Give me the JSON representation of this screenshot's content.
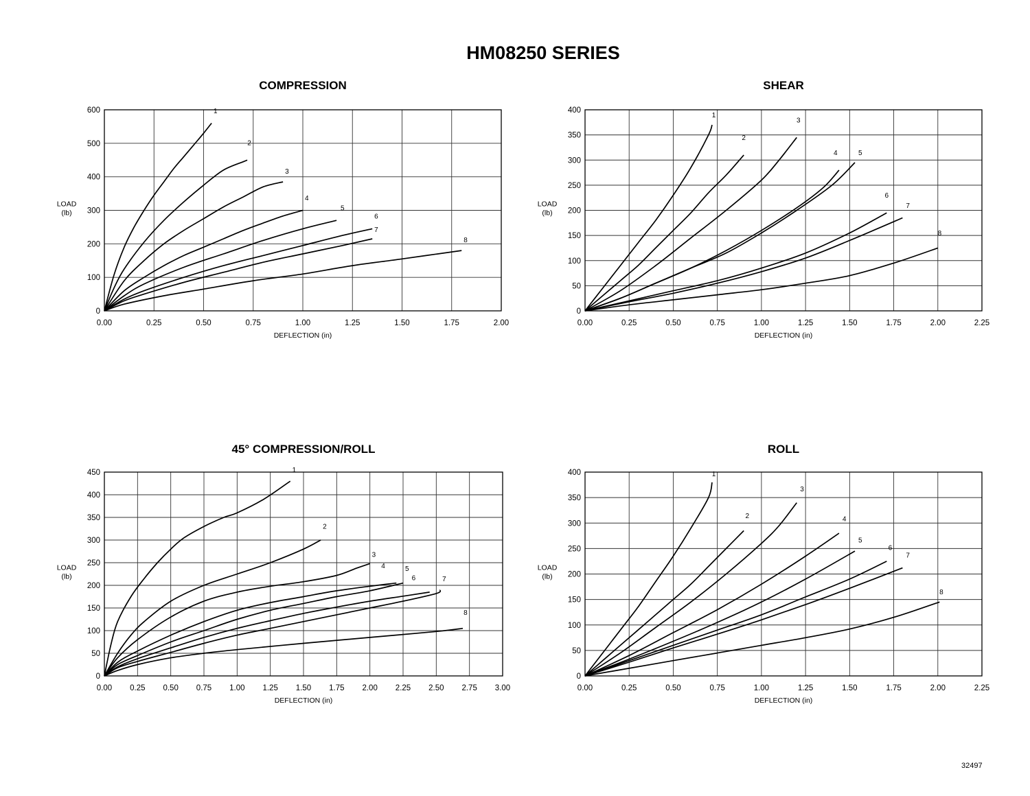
{
  "title": "HM08250 SERIES",
  "doc_number": "32497",
  "chart_data": [
    {
      "type": "line",
      "title": "COMPRESSION",
      "xlabel": "DEFLECTION (in)",
      "ylabel": [
        "LOAD",
        "(lb)"
      ],
      "xlim": [
        0,
        2.0
      ],
      "ylim": [
        0,
        600
      ],
      "xticks": [
        "0.00",
        "0.25",
        "0.50",
        "0.75",
        "1.00",
        "1.25",
        "1.50",
        "1.75",
        "2.00"
      ],
      "yticks": [
        "0",
        "100",
        "200",
        "300",
        "400",
        "500",
        "600"
      ],
      "grid": true,
      "series": [
        {
          "name": "1",
          "x": [
            0,
            0.05,
            0.1,
            0.15,
            0.2,
            0.25,
            0.3,
            0.35,
            0.4,
            0.45,
            0.5,
            0.54
          ],
          "y": [
            0,
            110,
            190,
            250,
            300,
            345,
            385,
            425,
            460,
            495,
            530,
            560
          ]
        },
        {
          "name": "2",
          "x": [
            0,
            0.05,
            0.1,
            0.2,
            0.3,
            0.4,
            0.5,
            0.6,
            0.7,
            0.72
          ],
          "y": [
            0,
            70,
            125,
            205,
            270,
            325,
            375,
            420,
            445,
            450
          ]
        },
        {
          "name": "3",
          "x": [
            0,
            0.1,
            0.2,
            0.3,
            0.4,
            0.5,
            0.6,
            0.7,
            0.8,
            0.9
          ],
          "y": [
            0,
            90,
            150,
            200,
            240,
            275,
            310,
            340,
            370,
            385
          ]
        },
        {
          "name": "4",
          "x": [
            0,
            0.1,
            0.2,
            0.3,
            0.4,
            0.5,
            0.6,
            0.7,
            0.8,
            0.9,
            1.0
          ],
          "y": [
            0,
            60,
            100,
            135,
            165,
            190,
            215,
            240,
            262,
            283,
            300
          ]
        },
        {
          "name": "5",
          "x": [
            0,
            0.1,
            0.2,
            0.4,
            0.6,
            0.8,
            1.0,
            1.17
          ],
          "y": [
            0,
            45,
            80,
            130,
            170,
            210,
            245,
            270
          ]
        },
        {
          "name": "6",
          "x": [
            0,
            0.1,
            0.2,
            0.4,
            0.6,
            0.8,
            1.0,
            1.2,
            1.35
          ],
          "y": [
            0,
            35,
            60,
            100,
            135,
            165,
            195,
            225,
            245
          ]
        },
        {
          "name": "7",
          "x": [
            0,
            0.1,
            0.2,
            0.4,
            0.6,
            0.8,
            1.0,
            1.2,
            1.35
          ],
          "y": [
            0,
            30,
            50,
            85,
            115,
            145,
            170,
            195,
            215
          ]
        },
        {
          "name": "8",
          "x": [
            0,
            0.1,
            0.3,
            0.5,
            0.75,
            1.0,
            1.25,
            1.5,
            1.8
          ],
          "y": [
            0,
            20,
            45,
            65,
            90,
            110,
            135,
            155,
            180
          ]
        }
      ],
      "curve_labels": [
        {
          "text": "1",
          "x": 0.56,
          "y": 590
        },
        {
          "text": "2",
          "x": 0.73,
          "y": 495
        },
        {
          "text": "3",
          "x": 0.92,
          "y": 410
        },
        {
          "text": "4",
          "x": 1.02,
          "y": 330
        },
        {
          "text": "5",
          "x": 1.2,
          "y": 300
        },
        {
          "text": "6",
          "x": 1.37,
          "y": 275
        },
        {
          "text": "7",
          "x": 1.37,
          "y": 235
        },
        {
          "text": "8",
          "x": 1.82,
          "y": 205
        }
      ]
    },
    {
      "type": "line",
      "title": "SHEAR",
      "xlabel": "DEFLECTION (in)",
      "ylabel": [
        "LOAD",
        "(lb)"
      ],
      "xlim": [
        0,
        2.25
      ],
      "ylim": [
        0,
        400
      ],
      "xticks": [
        "0.00",
        "0.25",
        "0.50",
        "0.75",
        "1.00",
        "1.25",
        "1.50",
        "1.75",
        "2.00",
        "2.25"
      ],
      "yticks": [
        "0",
        "50",
        "100",
        "150",
        "200",
        "250",
        "300",
        "350",
        "400"
      ],
      "grid": true,
      "series": [
        {
          "name": "1",
          "x": [
            0,
            0.1,
            0.2,
            0.3,
            0.4,
            0.5,
            0.6,
            0.7,
            0.72
          ],
          "y": [
            0,
            45,
            90,
            135,
            180,
            230,
            285,
            350,
            370
          ]
        },
        {
          "name": "2",
          "x": [
            0,
            0.1,
            0.2,
            0.3,
            0.4,
            0.5,
            0.6,
            0.7,
            0.8,
            0.9
          ],
          "y": [
            0,
            30,
            60,
            90,
            125,
            160,
            195,
            235,
            270,
            310
          ]
        },
        {
          "name": "3",
          "x": [
            0,
            0.2,
            0.4,
            0.6,
            0.8,
            1.0,
            1.1,
            1.2
          ],
          "y": [
            0,
            40,
            90,
            145,
            200,
            260,
            300,
            345
          ]
        },
        {
          "name": "4",
          "x": [
            0,
            0.2,
            0.4,
            0.6,
            0.8,
            1.0,
            1.2,
            1.35,
            1.44
          ],
          "y": [
            0,
            25,
            55,
            85,
            120,
            160,
            205,
            245,
            280
          ]
        },
        {
          "name": "5",
          "x": [
            0,
            0.2,
            0.4,
            0.6,
            0.8,
            1.0,
            1.2,
            1.4,
            1.53
          ],
          "y": [
            0,
            25,
            55,
            85,
            115,
            155,
            200,
            250,
            295
          ]
        },
        {
          "name": "6",
          "x": [
            0,
            0.25,
            0.5,
            0.75,
            1.0,
            1.25,
            1.5,
            1.71
          ],
          "y": [
            0,
            20,
            40,
            60,
            85,
            115,
            155,
            195
          ]
        },
        {
          "name": "7",
          "x": [
            0,
            0.25,
            0.5,
            0.75,
            1.0,
            1.25,
            1.5,
            1.8
          ],
          "y": [
            0,
            18,
            35,
            55,
            78,
            105,
            140,
            185
          ]
        },
        {
          "name": "8",
          "x": [
            0,
            0.25,
            0.5,
            0.75,
            1.0,
            1.25,
            1.5,
            1.75,
            2.0
          ],
          "y": [
            0,
            12,
            22,
            32,
            42,
            55,
            70,
            95,
            125
          ]
        }
      ],
      "curve_labels": [
        {
          "text": "1",
          "x": 0.73,
          "y": 385
        },
        {
          "text": "2",
          "x": 0.9,
          "y": 340
        },
        {
          "text": "3",
          "x": 1.21,
          "y": 375
        },
        {
          "text": "4",
          "x": 1.42,
          "y": 310
        },
        {
          "text": "5",
          "x": 1.56,
          "y": 310
        },
        {
          "text": "6",
          "x": 1.71,
          "y": 225
        },
        {
          "text": "7",
          "x": 1.83,
          "y": 205
        },
        {
          "text": "8",
          "x": 2.01,
          "y": 150
        }
      ]
    },
    {
      "type": "line",
      "title": "45° COMPRESSION/ROLL",
      "xlabel": "DEFLECTION (in)",
      "ylabel": [
        "LOAD",
        "(lb)"
      ],
      "xlim": [
        0,
        3.0
      ],
      "ylim": [
        0,
        450
      ],
      "xticks": [
        "0.00",
        "0.25",
        "0.50",
        "0.75",
        "1.00",
        "1.25",
        "1.50",
        "1.75",
        "2.00",
        "2.25",
        "2.50",
        "2.75",
        "3.00"
      ],
      "yticks": [
        "0",
        "50",
        "100",
        "150",
        "200",
        "250",
        "300",
        "350",
        "400",
        "450"
      ],
      "grid": true,
      "series": [
        {
          "name": "1",
          "x": [
            0,
            0.05,
            0.1,
            0.2,
            0.3,
            0.4,
            0.5,
            0.6,
            0.75,
            0.9,
            1.0,
            1.2,
            1.4
          ],
          "y": [
            0,
            70,
            120,
            175,
            215,
            250,
            280,
            305,
            330,
            350,
            360,
            390,
            430
          ]
        },
        {
          "name": "2",
          "x": [
            0,
            0.1,
            0.2,
            0.3,
            0.5,
            0.75,
            1.0,
            1.25,
            1.5,
            1.63
          ],
          "y": [
            0,
            50,
            90,
            120,
            165,
            200,
            225,
            250,
            280,
            300
          ]
        },
        {
          "name": "3",
          "x": [
            0,
            0.1,
            0.25,
            0.5,
            0.75,
            1.0,
            1.25,
            1.5,
            1.75,
            1.9,
            2.0
          ],
          "y": [
            0,
            40,
            80,
            130,
            165,
            185,
            198,
            208,
            222,
            238,
            248
          ]
        },
        {
          "name": "4",
          "x": [
            0,
            0.1,
            0.25,
            0.5,
            0.75,
            1.0,
            1.25,
            1.5,
            1.75,
            2.0,
            2.2
          ],
          "y": [
            0,
            30,
            55,
            90,
            120,
            145,
            162,
            175,
            188,
            198,
            205
          ]
        },
        {
          "name": "5",
          "x": [
            0,
            0.1,
            0.25,
            0.5,
            0.75,
            1.0,
            1.25,
            1.5,
            1.75,
            2.0,
            2.25
          ],
          "y": [
            0,
            25,
            45,
            75,
            100,
            125,
            145,
            160,
            175,
            188,
            205
          ]
        },
        {
          "name": "6",
          "x": [
            0,
            0.1,
            0.25,
            0.5,
            0.75,
            1.0,
            1.25,
            1.5,
            1.75,
            2.0,
            2.25,
            2.45
          ],
          "y": [
            0,
            20,
            38,
            62,
            85,
            105,
            122,
            138,
            152,
            165,
            176,
            185
          ]
        },
        {
          "name": "7",
          "x": [
            0,
            0.1,
            0.25,
            0.5,
            0.75,
            1.0,
            1.25,
            1.5,
            1.75,
            2.0,
            2.25,
            2.5,
            2.53
          ],
          "y": [
            0,
            18,
            32,
            52,
            72,
            90,
            105,
            120,
            135,
            150,
            165,
            182,
            190
          ]
        },
        {
          "name": "8",
          "x": [
            0,
            0.1,
            0.25,
            0.5,
            0.75,
            1.0,
            1.5,
            2.0,
            2.5,
            2.7
          ],
          "y": [
            0,
            12,
            25,
            40,
            50,
            58,
            72,
            85,
            98,
            105
          ]
        }
      ],
      "curve_labels": [
        {
          "text": "1",
          "x": 1.43,
          "y": 450
        },
        {
          "text": "2",
          "x": 1.66,
          "y": 325
        },
        {
          "text": "3",
          "x": 2.03,
          "y": 263
        },
        {
          "text": "4",
          "x": 2.1,
          "y": 238
        },
        {
          "text": "5",
          "x": 2.28,
          "y": 232
        },
        {
          "text": "6",
          "x": 2.33,
          "y": 211
        },
        {
          "text": "7",
          "x": 2.56,
          "y": 209
        },
        {
          "text": "8",
          "x": 2.72,
          "y": 135
        }
      ]
    },
    {
      "type": "line",
      "title": "ROLL",
      "xlabel": "DEFLECTION (in)",
      "ylabel": [
        "LOAD",
        "(lb)"
      ],
      "xlim": [
        0,
        2.25
      ],
      "ylim": [
        0,
        400
      ],
      "xticks": [
        "0.00",
        "0.25",
        "0.50",
        "0.75",
        "1.00",
        "1.25",
        "1.50",
        "1.75",
        "2.00",
        "2.25"
      ],
      "yticks": [
        "0",
        "50",
        "100",
        "150",
        "200",
        "250",
        "300",
        "350",
        "400"
      ],
      "grid": true,
      "series": [
        {
          "name": "1",
          "x": [
            0,
            0.1,
            0.2,
            0.3,
            0.4,
            0.5,
            0.6,
            0.7,
            0.72
          ],
          "y": [
            0,
            45,
            90,
            135,
            185,
            235,
            290,
            350,
            380
          ]
        },
        {
          "name": "2",
          "x": [
            0,
            0.1,
            0.2,
            0.3,
            0.4,
            0.5,
            0.6,
            0.7,
            0.8,
            0.9
          ],
          "y": [
            0,
            30,
            60,
            90,
            120,
            150,
            180,
            215,
            250,
            285
          ]
        },
        {
          "name": "3",
          "x": [
            0,
            0.2,
            0.4,
            0.6,
            0.8,
            1.0,
            1.1,
            1.2
          ],
          "y": [
            0,
            45,
            95,
            145,
            200,
            260,
            295,
            340
          ]
        },
        {
          "name": "4",
          "x": [
            0,
            0.25,
            0.5,
            0.75,
            1.0,
            1.25,
            1.44
          ],
          "y": [
            0,
            40,
            85,
            130,
            180,
            235,
            280
          ]
        },
        {
          "name": "5",
          "x": [
            0,
            0.25,
            0.5,
            0.75,
            1.0,
            1.25,
            1.53
          ],
          "y": [
            0,
            33,
            68,
            105,
            145,
            190,
            245
          ]
        },
        {
          "name": "6",
          "x": [
            0,
            0.25,
            0.5,
            0.75,
            1.0,
            1.25,
            1.5,
            1.71
          ],
          "y": [
            0,
            30,
            60,
            90,
            120,
            155,
            190,
            225
          ]
        },
        {
          "name": "7",
          "x": [
            0,
            0.25,
            0.5,
            0.75,
            1.0,
            1.25,
            1.5,
            1.8
          ],
          "y": [
            0,
            27,
            55,
            82,
            110,
            140,
            172,
            212
          ]
        },
        {
          "name": "8",
          "x": [
            0,
            0.25,
            0.5,
            0.75,
            1.0,
            1.25,
            1.5,
            1.75,
            2.01
          ],
          "y": [
            0,
            15,
            30,
            45,
            60,
            75,
            92,
            115,
            145
          ]
        }
      ],
      "curve_labels": [
        {
          "text": "1",
          "x": 0.73,
          "y": 392
        },
        {
          "text": "2",
          "x": 0.92,
          "y": 310
        },
        {
          "text": "3",
          "x": 1.23,
          "y": 362
        },
        {
          "text": "4",
          "x": 1.47,
          "y": 304
        },
        {
          "text": "5",
          "x": 1.56,
          "y": 262
        },
        {
          "text": "6",
          "x": 1.73,
          "y": 247
        },
        {
          "text": "7",
          "x": 1.83,
          "y": 232
        },
        {
          "text": "8",
          "x": 2.02,
          "y": 160
        }
      ]
    }
  ]
}
